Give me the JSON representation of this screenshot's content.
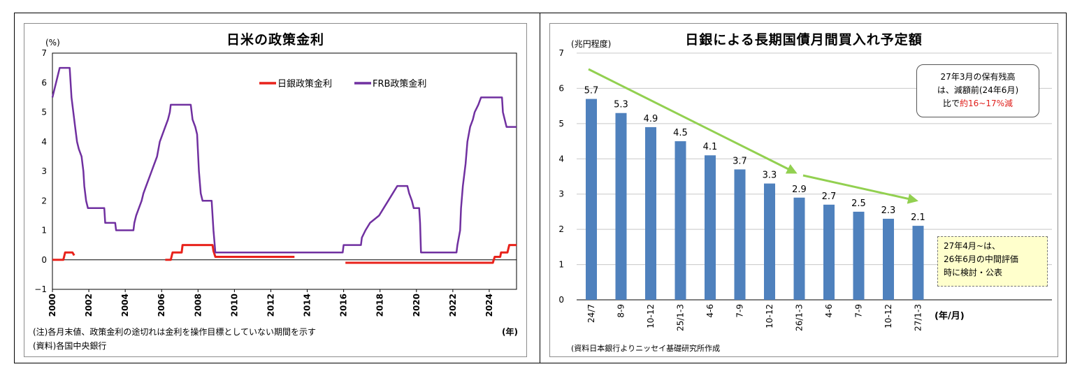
{
  "left_panel": {
    "title": "日米の政策金利",
    "unit": "(%)",
    "x_unit": "(年)",
    "note1": "(注)各月末値、政策金利の途切れは金利を操作目標としていない期間を示す",
    "note2": "(資料)各国中央銀行"
  },
  "right_panel": {
    "title": "日銀による長期国債月間買入れ予定額",
    "unit": "(兆円程度)",
    "x_unit": "(年/月)",
    "source": "(資料日本銀行よりニッセイ基礎研究所作成",
    "callout_top": {
      "line1": "27年3月の保有残高",
      "line2": "は、減額前(24年6月)",
      "line3_prefix": "比で",
      "line3_highlight": "約16~17%減"
    },
    "callout_bottom": {
      "line1": "27年4月~は、",
      "line2": "26年6月の中間評価",
      "line3": "時に検討・公表"
    }
  },
  "colors": {
    "boj": "#e8221b",
    "frb": "#7030a0",
    "bar": "#4f81bd",
    "arrow": "#92d050",
    "highlight": "#e0201c"
  },
  "chart_data": [
    {
      "type": "line",
      "title": "日米の政策金利",
      "ylabel": "(%)",
      "xlabel": "(年)",
      "ylim": [
        -1,
        7
      ],
      "xlim": [
        2000,
        2025.5
      ],
      "yticks": [
        "7",
        "6",
        "5",
        "4",
        "3",
        "2",
        "1",
        "0",
        "−1"
      ],
      "xticks": [
        "2000",
        "2002",
        "2004",
        "2006",
        "2008",
        "2010",
        "2012",
        "2014",
        "2016",
        "2018",
        "2020",
        "2022",
        "2024"
      ],
      "legend": "top-right",
      "series": [
        {
          "name": "日銀政策金利",
          "color": "#e8221b",
          "segments": [
            [
              [
                2000.0,
                0.0
              ],
              [
                2000.6,
                0.0
              ],
              [
                2000.7,
                0.25
              ],
              [
                2001.1,
                0.25
              ],
              [
                2001.2,
                0.15
              ]
            ],
            [
              [
                2006.2,
                0.0
              ],
              [
                2006.5,
                0.0
              ],
              [
                2006.6,
                0.25
              ],
              [
                2007.1,
                0.25
              ],
              [
                2007.15,
                0.5
              ],
              [
                2008.8,
                0.5
              ],
              [
                2008.85,
                0.3
              ],
              [
                2008.95,
                0.1
              ],
              [
                2013.3,
                0.1
              ]
            ],
            [
              [
                2016.1,
                -0.1
              ],
              [
                2024.2,
                -0.1
              ],
              [
                2024.3,
                0.1
              ],
              [
                2024.6,
                0.1
              ],
              [
                2024.65,
                0.25
              ],
              [
                2025.0,
                0.25
              ],
              [
                2025.1,
                0.5
              ],
              [
                2025.5,
                0.5
              ]
            ]
          ]
        },
        {
          "name": "FRB政策金利",
          "color": "#7030a0",
          "segments": [
            [
              [
                2000.0,
                5.5
              ],
              [
                2000.1,
                5.75
              ],
              [
                2000.2,
                6.0
              ],
              [
                2000.4,
                6.5
              ],
              [
                2000.95,
                6.5
              ],
              [
                2001.05,
                5.5
              ],
              [
                2001.15,
                5.0
              ],
              [
                2001.25,
                4.5
              ],
              [
                2001.35,
                4.0
              ],
              [
                2001.45,
                3.75
              ],
              [
                2001.6,
                3.5
              ],
              [
                2001.7,
                3.0
              ],
              [
                2001.75,
                2.5
              ],
              [
                2001.85,
                2.0
              ],
              [
                2001.95,
                1.75
              ],
              [
                2002.85,
                1.75
              ],
              [
                2002.9,
                1.25
              ],
              [
                2003.45,
                1.25
              ],
              [
                2003.5,
                1.0
              ],
              [
                2004.45,
                1.0
              ],
              [
                2004.5,
                1.25
              ],
              [
                2004.6,
                1.5
              ],
              [
                2004.75,
                1.75
              ],
              [
                2004.9,
                2.0
              ],
              [
                2005.0,
                2.25
              ],
              [
                2005.15,
                2.5
              ],
              [
                2005.3,
                2.75
              ],
              [
                2005.45,
                3.0
              ],
              [
                2005.6,
                3.25
              ],
              [
                2005.75,
                3.5
              ],
              [
                2005.9,
                4.0
              ],
              [
                2006.05,
                4.25
              ],
              [
                2006.2,
                4.5
              ],
              [
                2006.35,
                4.75
              ],
              [
                2006.45,
                5.0
              ],
              [
                2006.5,
                5.25
              ],
              [
                2007.6,
                5.25
              ],
              [
                2007.7,
                4.75
              ],
              [
                2007.85,
                4.5
              ],
              [
                2007.95,
                4.25
              ],
              [
                2008.05,
                3.0
              ],
              [
                2008.15,
                2.25
              ],
              [
                2008.25,
                2.0
              ],
              [
                2008.75,
                2.0
              ],
              [
                2008.8,
                1.5
              ],
              [
                2008.85,
                1.0
              ],
              [
                2008.95,
                0.25
              ],
              [
                2015.95,
                0.25
              ],
              [
                2016.0,
                0.5
              ],
              [
                2016.95,
                0.5
              ],
              [
                2017.0,
                0.75
              ],
              [
                2017.2,
                1.0
              ],
              [
                2017.45,
                1.25
              ],
              [
                2017.95,
                1.5
              ],
              [
                2018.2,
                1.75
              ],
              [
                2018.45,
                2.0
              ],
              [
                2018.7,
                2.25
              ],
              [
                2018.95,
                2.5
              ],
              [
                2019.5,
                2.5
              ],
              [
                2019.6,
                2.25
              ],
              [
                2019.75,
                2.0
              ],
              [
                2019.85,
                1.75
              ],
              [
                2020.15,
                1.75
              ],
              [
                2020.2,
                1.25
              ],
              [
                2020.25,
                0.25
              ],
              [
                2022.2,
                0.25
              ],
              [
                2022.25,
                0.5
              ],
              [
                2022.4,
                1.0
              ],
              [
                2022.45,
                1.75
              ],
              [
                2022.55,
                2.5
              ],
              [
                2022.7,
                3.25
              ],
              [
                2022.8,
                4.0
              ],
              [
                2022.95,
                4.5
              ],
              [
                2023.1,
                4.75
              ],
              [
                2023.2,
                5.0
              ],
              [
                2023.4,
                5.25
              ],
              [
                2023.55,
                5.5
              ],
              [
                2024.7,
                5.5
              ],
              [
                2024.75,
                5.0
              ],
              [
                2024.85,
                4.75
              ],
              [
                2024.95,
                4.5
              ],
              [
                2025.5,
                4.5
              ]
            ]
          ]
        }
      ]
    },
    {
      "type": "bar",
      "title": "日銀による長期国債月間買入れ予定額",
      "ylabel": "(兆円程度)",
      "xlabel": "(年/月)",
      "ylim": [
        0,
        7
      ],
      "yticks": [
        "7",
        "6",
        "5",
        "4",
        "3",
        "2",
        "1",
        "0"
      ],
      "categories": [
        "24/7",
        "8-9",
        "10-12",
        "25/1-3",
        "4-6",
        "7-9",
        "10-12",
        "26/1-3",
        "4-6",
        "7-9",
        "10-12",
        "27/1-3"
      ],
      "values": [
        5.7,
        5.3,
        4.9,
        4.5,
        4.1,
        3.7,
        3.3,
        2.9,
        2.7,
        2.5,
        2.3,
        2.1
      ],
      "grid": true
    }
  ]
}
